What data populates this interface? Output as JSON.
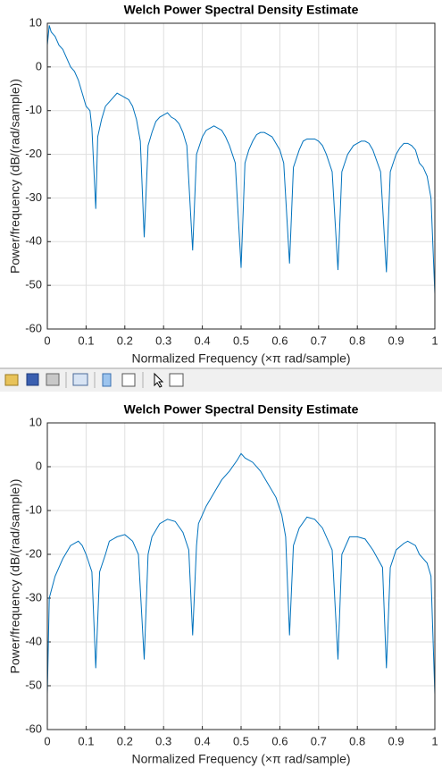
{
  "chart_data": [
    {
      "type": "line",
      "title": "Welch Power Spectral Density Estimate",
      "xlabel": "Normalized Frequency  (×π rad/sample)",
      "ylabel": "Power/frequency (dB/(rad/sample))",
      "x": [
        0,
        0.005,
        0.01,
        0.02,
        0.03,
        0.04,
        0.05,
        0.06,
        0.07,
        0.08,
        0.09,
        0.1,
        0.11,
        0.115,
        0.125,
        0.13,
        0.14,
        0.15,
        0.16,
        0.17,
        0.18,
        0.19,
        0.2,
        0.21,
        0.22,
        0.23,
        0.24,
        0.25,
        0.26,
        0.27,
        0.28,
        0.29,
        0.3,
        0.31,
        0.32,
        0.33,
        0.34,
        0.35,
        0.36,
        0.375,
        0.385,
        0.4,
        0.41,
        0.42,
        0.43,
        0.44,
        0.45,
        0.46,
        0.47,
        0.485,
        0.5,
        0.51,
        0.52,
        0.53,
        0.54,
        0.55,
        0.56,
        0.57,
        0.58,
        0.59,
        0.6,
        0.61,
        0.625,
        0.635,
        0.65,
        0.66,
        0.67,
        0.68,
        0.69,
        0.7,
        0.71,
        0.72,
        0.735,
        0.75,
        0.76,
        0.775,
        0.79,
        0.8,
        0.81,
        0.82,
        0.83,
        0.84,
        0.86,
        0.875,
        0.885,
        0.9,
        0.91,
        0.92,
        0.93,
        0.94,
        0.95,
        0.96,
        0.97,
        0.98,
        0.99,
        1
      ],
      "series": [
        {
          "color": "#0072bd",
          "values": [
            5,
            9.5,
            8,
            7,
            5,
            4,
            2,
            0,
            -1,
            -3,
            -6,
            -9,
            -10,
            -14,
            -32.5,
            -16,
            -12,
            -9,
            -8,
            -7,
            -6,
            -6.5,
            -7,
            -7.5,
            -9,
            -12,
            -17,
            -39,
            -18,
            -15,
            -12.5,
            -11.5,
            -11,
            -10.5,
            -11.5,
            -12,
            -13,
            -15,
            -18,
            -42,
            -20,
            -16,
            -14.5,
            -14,
            -13.5,
            -14,
            -14.5,
            -16,
            -18,
            -22,
            -46,
            -22,
            -19,
            -17,
            -15.5,
            -15,
            -15,
            -15.5,
            -16,
            -17.5,
            -19,
            -22,
            -45,
            -23,
            -19,
            -17,
            -16.5,
            -16.5,
            -16.5,
            -17,
            -18,
            -20,
            -24,
            -46.5,
            -24,
            -20,
            -18,
            -17.5,
            -17,
            -17,
            -17.5,
            -19,
            -24,
            -47,
            -24,
            -20,
            -18.5,
            -17.5,
            -17.5,
            -18,
            -19,
            -22,
            -23,
            -25,
            -30,
            -52
          ]
        }
      ],
      "xlim": [
        0,
        1
      ],
      "xticks": [
        0,
        0.1,
        0.2,
        0.3,
        0.4,
        0.5,
        0.6,
        0.7,
        0.8,
        0.9,
        1
      ],
      "ylim": [
        -60,
        10
      ],
      "yticks": [
        -60,
        -50,
        -40,
        -30,
        -20,
        -10,
        0,
        10
      ],
      "grid": true
    },
    {
      "type": "line",
      "title": "Welch Power Spectral Density Estimate",
      "xlabel": "Normalized Frequency  (×π rad/sample)",
      "ylabel": "Power/frequency (dB/(rad/sample))",
      "x": [
        0,
        0.005,
        0.02,
        0.04,
        0.06,
        0.08,
        0.09,
        0.1,
        0.115,
        0.125,
        0.135,
        0.15,
        0.16,
        0.18,
        0.2,
        0.22,
        0.235,
        0.25,
        0.26,
        0.27,
        0.29,
        0.31,
        0.33,
        0.35,
        0.365,
        0.375,
        0.385,
        0.39,
        0.41,
        0.43,
        0.45,
        0.47,
        0.49,
        0.5,
        0.51,
        0.53,
        0.55,
        0.57,
        0.59,
        0.605,
        0.615,
        0.625,
        0.635,
        0.65,
        0.67,
        0.69,
        0.71,
        0.735,
        0.75,
        0.76,
        0.78,
        0.8,
        0.82,
        0.84,
        0.865,
        0.875,
        0.885,
        0.9,
        0.92,
        0.93,
        0.95,
        0.96,
        0.98,
        0.99,
        1
      ],
      "series": [
        {
          "color": "#0072bd",
          "values": [
            -52,
            -30,
            -25,
            -21,
            -18,
            -17,
            -18,
            -20,
            -24,
            -46,
            -24,
            -20,
            -17,
            -16,
            -15.5,
            -17,
            -20,
            -44,
            -20,
            -16,
            -13,
            -12,
            -12.5,
            -15,
            -19,
            -38.5,
            -18,
            -13,
            -9,
            -6,
            -3,
            -1,
            1.5,
            3,
            2,
            1,
            -1,
            -4,
            -7,
            -11,
            -16,
            -38.5,
            -18,
            -14,
            -11.5,
            -12,
            -14,
            -19,
            -44,
            -20,
            -16,
            -16,
            -16.5,
            -19,
            -23,
            -46,
            -23,
            -19,
            -17.5,
            -17,
            -18,
            -20,
            -22,
            -25,
            -52
          ]
        }
      ],
      "xlim": [
        0,
        1
      ],
      "xticks": [
        0,
        0.1,
        0.2,
        0.3,
        0.4,
        0.5,
        0.6,
        0.7,
        0.8,
        0.9,
        1
      ],
      "ylim": [
        -60,
        10
      ],
      "yticks": [
        -60,
        -50,
        -40,
        -30,
        -20,
        -10,
        0,
        10
      ],
      "grid": true
    }
  ]
}
